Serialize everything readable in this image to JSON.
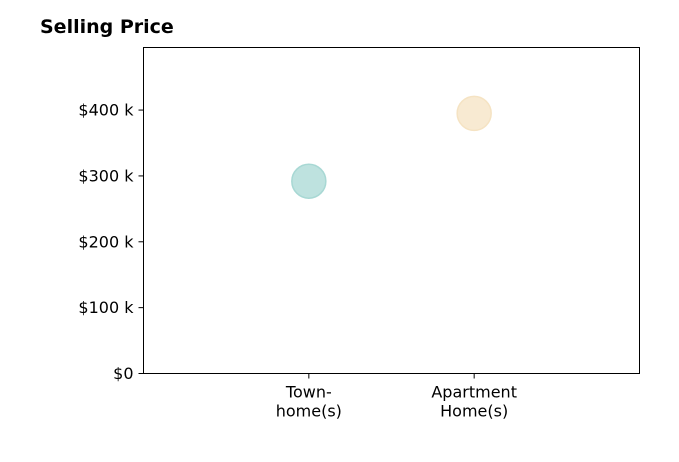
{
  "chart_data": {
    "type": "scatter",
    "title": "Selling Price",
    "xlabel": "",
    "ylabel": "",
    "categories": [
      {
        "lines": [
          "Town-",
          "home(s)"
        ]
      },
      {
        "lines": [
          "Apartment",
          "Home(s)"
        ]
      }
    ],
    "yticks": [
      {
        "value": 0,
        "label": "$0"
      },
      {
        "value": 100,
        "label": "$100 k"
      },
      {
        "value": 200,
        "label": "$200 k"
      },
      {
        "value": 300,
        "label": "$300 k"
      },
      {
        "value": 400,
        "label": "$400 k"
      }
    ],
    "ylim": [
      0,
      495
    ],
    "xlim": [
      -1,
      2
    ],
    "points": [
      {
        "category_index": 0,
        "y": 292,
        "color": "#a8d8d4"
      },
      {
        "category_index": 1,
        "y": 395,
        "color": "#f5e3c3"
      }
    ],
    "grid": false,
    "legend": "none"
  }
}
